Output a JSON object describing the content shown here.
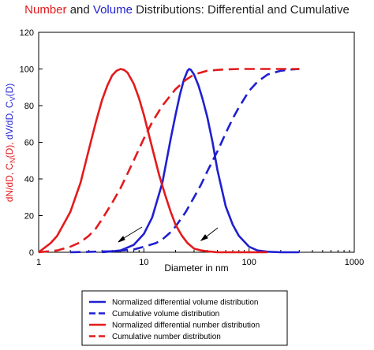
{
  "chart_data": {
    "type": "line",
    "title_parts": [
      {
        "text": "Number",
        "color": "#e31a1c"
      },
      {
        "text": " and ",
        "color": "#222222"
      },
      {
        "text": "Volume",
        "color": "#1f1fd1"
      },
      {
        "text": " Distributions: Differential and Cumulative",
        "color": "#222222"
      }
    ],
    "xlabel": "Diameter in nm",
    "ylabel_parts": [
      {
        "text": "dN/dD, C",
        "color": "#e31a1c",
        "sub": false
      },
      {
        "text": "N",
        "color": "#e31a1c",
        "sub": true
      },
      {
        "text": "(D),",
        "color": "#e31a1c",
        "sub": false
      },
      {
        "text": " dV/dD, C",
        "color": "#1f1fd1",
        "sub": false
      },
      {
        "text": "V",
        "color": "#1f1fd1",
        "sub": true
      },
      {
        "text": "(D)",
        "color": "#1f1fd1",
        "sub": false
      }
    ],
    "xscale": "log",
    "xlim": [
      1,
      1000
    ],
    "ylim": [
      0,
      120
    ],
    "xticks": [
      1,
      10,
      100,
      1000
    ],
    "xtick_labels": [
      "1",
      "10",
      "100",
      "1000"
    ],
    "yticks": [
      0,
      20,
      40,
      60,
      80,
      100,
      120
    ],
    "ytick_labels": [
      "0",
      "20",
      "40",
      "60",
      "80",
      "100",
      "120"
    ],
    "grid": false,
    "legend_position": "below",
    "series": [
      {
        "name": "Normalized differential volume distribution",
        "color": "#1f1fd1",
        "dash": "solid",
        "x": [
          4,
          5,
          6,
          8,
          10,
          12,
          15,
          18,
          20,
          22,
          24,
          26,
          27,
          28,
          30,
          33,
          36,
          40,
          45,
          50,
          60,
          70,
          80,
          100,
          120,
          150,
          200,
          300
        ],
        "y": [
          0,
          0.5,
          1,
          4,
          10,
          19,
          38,
          62,
          75,
          86,
          94,
          99,
          100,
          99.5,
          97,
          91,
          84,
          74,
          60,
          45,
          25,
          15,
          9,
          3,
          1,
          0.3,
          0,
          0
        ]
      },
      {
        "name": "Cumulative volume distribution",
        "color": "#1f1fd1",
        "dash": "dashed",
        "x": [
          2,
          5,
          8,
          10,
          13,
          15,
          18,
          20,
          25,
          30,
          35,
          40,
          50,
          60,
          70,
          80,
          100,
          120,
          150,
          200,
          250,
          300
        ],
        "y": [
          0,
          0.5,
          1.5,
          3,
          5,
          7,
          11,
          14,
          22,
          30,
          37,
          44,
          55,
          65,
          73,
          79,
          88,
          93,
          97,
          99,
          99.7,
          100
        ]
      },
      {
        "name": "Normalized differential number distribution",
        "color": "#e31a1c",
        "dash": "solid",
        "x": [
          1,
          1.3,
          1.5,
          2,
          2.5,
          3,
          3.5,
          4,
          4.5,
          5,
          5.5,
          6,
          6.5,
          7,
          8,
          9,
          10,
          12,
          14,
          16,
          18,
          20,
          23,
          26,
          30,
          35,
          40,
          50,
          60,
          80,
          100,
          150
        ],
        "y": [
          0,
          5,
          9,
          22,
          38,
          56,
          71,
          83,
          91,
          96.5,
          99,
          100,
          99.5,
          98,
          92,
          84,
          75,
          57,
          42,
          31,
          22,
          15,
          9,
          5,
          2,
          1,
          0.5,
          0,
          0,
          0,
          0,
          0
        ]
      },
      {
        "name": "Cumulative number distribution",
        "color": "#e31a1c",
        "dash": "dashed",
        "x": [
          1,
          1.5,
          2,
          2.5,
          3,
          3.5,
          4,
          5,
          6,
          7,
          8,
          10,
          12,
          15,
          20,
          25,
          30,
          40,
          50,
          60,
          80,
          100,
          150,
          200,
          300
        ],
        "y": [
          0,
          1,
          3,
          5.5,
          9,
          13,
          18,
          27,
          35,
          43,
          50,
          62,
          71,
          80,
          89,
          94,
          97,
          99,
          99.5,
          99.8,
          100,
          100,
          100,
          100,
          100
        ]
      }
    ]
  }
}
